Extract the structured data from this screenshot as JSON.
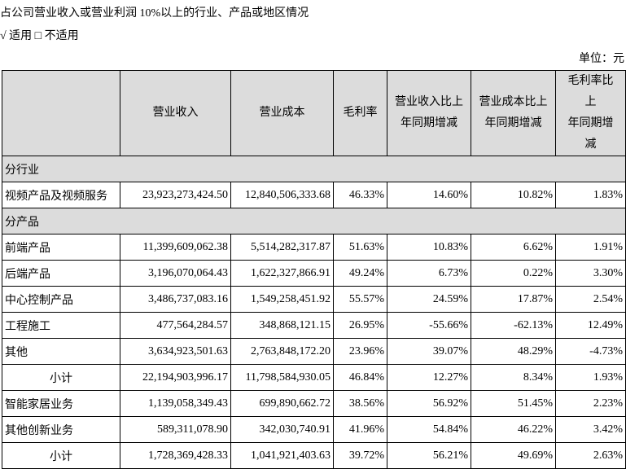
{
  "header": {
    "title": "占公司营业收入或营业利润 10%以上的行业、产品或地区情况",
    "applicability": "√ 适用 □ 不适用",
    "unit": "单位：元"
  },
  "table": {
    "columns": [
      "营业收入",
      "营业成本",
      "毛利率",
      [
        "营业收入比上",
        "年同期增减"
      ],
      [
        "营业成本比上",
        "年同期增减"
      ],
      [
        "毛利率比上",
        "年同期增减"
      ]
    ],
    "rows": [
      [
        "分行业"
      ],
      [
        "视频产品及视频服务",
        "23,923,273,424.50",
        "12,840,506,333.68",
        "46.33%",
        "14.60%",
        "10.82%",
        "1.83%"
      ],
      [
        "分产品"
      ],
      [
        "前端产品",
        "11,399,609,062.38",
        "5,514,282,317.87",
        "51.63%",
        "10.83%",
        "6.62%",
        "1.91%"
      ],
      [
        "后端产品",
        "3,196,070,064.43",
        "1,622,327,866.91",
        "49.24%",
        "6.73%",
        "0.22%",
        "3.30%"
      ],
      [
        "中心控制产品",
        "3,486,737,083.16",
        "1,549,258,451.92",
        "55.57%",
        "24.59%",
        "17.87%",
        "2.54%"
      ],
      [
        "工程施工",
        "477,564,284.57",
        "348,868,121.15",
        "26.95%",
        "-55.66%",
        "-62.13%",
        "12.49%"
      ],
      [
        "其他",
        "3,634,923,501.63",
        "2,763,848,172.20",
        "23.96%",
        "39.07%",
        "48.29%",
        "-4.73%"
      ],
      [
        "小计",
        "22,194,903,996.17",
        "11,798,584,930.05",
        "46.84%",
        "12.27%",
        "8.34%",
        "1.93%"
      ],
      [
        "智能家居业务",
        "1,139,058,349.43",
        "699,890,662.72",
        "38.56%",
        "56.92%",
        "51.45%",
        "2.23%"
      ],
      [
        "其他创新业务",
        "589,311,078.90",
        "342,030,740.91",
        "41.96%",
        "54.84%",
        "46.22%",
        "3.42%"
      ],
      [
        "小计",
        "1,728,369,428.33",
        "1,041,921,403.63",
        "39.72%",
        "56.21%",
        "49.69%",
        "2.63%"
      ]
    ]
  }
}
